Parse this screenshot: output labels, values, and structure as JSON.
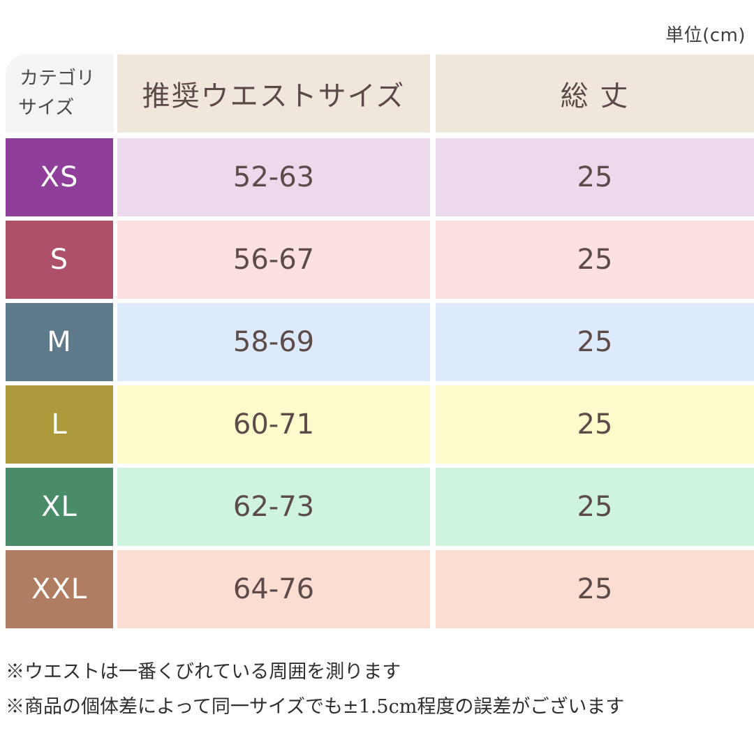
{
  "unit_label": "単位(cm)",
  "header": {
    "corner_line1": "カテゴリ",
    "corner_line2": "サイズ",
    "col_waist": "推奨ウエストサイズ",
    "col_length": "総 丈"
  },
  "rows": [
    {
      "size": "XS",
      "waist": "52-63",
      "length": "25",
      "size_color": "#8f3f99",
      "row_color": "#ecdaec"
    },
    {
      "size": "S",
      "waist": "56-67",
      "length": "25",
      "size_color": "#ad5068",
      "row_color": "#fde0e2"
    },
    {
      "size": "M",
      "waist": "58-69",
      "length": "25",
      "size_color": "#5f7a8b",
      "row_color": "#ddeafb"
    },
    {
      "size": "L",
      "waist": "60-71",
      "length": "25",
      "size_color": "#ad9a3c",
      "row_color": "#fdfbcc"
    },
    {
      "size": "XL",
      "waist": "62-73",
      "length": "25",
      "size_color": "#4a8b6a",
      "row_color": "#cef3df"
    },
    {
      "size": "XXL",
      "waist": "64-76",
      "length": "25",
      "size_color": "#b07d62",
      "row_color": "#fbddd2"
    }
  ],
  "notes": {
    "note1": "※ウエストは一番くびれている周囲を測ります",
    "note2": "※商品の個体差によって同一サイズでも±1.5cm程度の誤差がございます"
  }
}
